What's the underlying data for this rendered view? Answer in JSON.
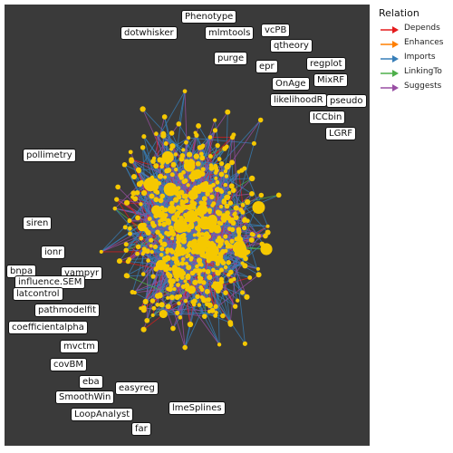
{
  "network": {
    "labels": [
      {
        "text": "Phenotype"
      },
      {
        "text": "dotwhisker"
      },
      {
        "text": "mlmtools"
      },
      {
        "text": "vcPB"
      },
      {
        "text": "qtheory"
      },
      {
        "text": "purge"
      },
      {
        "text": "epr"
      },
      {
        "text": "regplot"
      },
      {
        "text": "OnAge"
      },
      {
        "text": "MixRF"
      },
      {
        "text": "likelihoodR"
      },
      {
        "text": "pseudo"
      },
      {
        "text": "ICCbin"
      },
      {
        "text": "LGRF"
      },
      {
        "text": "pollimetry"
      },
      {
        "text": "siren"
      },
      {
        "text": "ionr"
      },
      {
        "text": "bnpa"
      },
      {
        "text": "vampyr"
      },
      {
        "text": "influence.SEM"
      },
      {
        "text": "latcontrol"
      },
      {
        "text": "pathmodelfit"
      },
      {
        "text": "coefficientalpha"
      },
      {
        "text": "mvctm"
      },
      {
        "text": "covBM"
      },
      {
        "text": "eba"
      },
      {
        "text": "easyreg"
      },
      {
        "text": "SmoothWin"
      },
      {
        "text": "lmeSplines"
      },
      {
        "text": "LoopAnalyst"
      },
      {
        "text": "far"
      }
    ],
    "node_color": "#f5c800",
    "background": "#3a3a3a"
  },
  "legend": {
    "title": "Relation",
    "items": [
      {
        "label": "Depends",
        "color": "#e41a1c"
      },
      {
        "label": "Enhances",
        "color": "#ff7f00"
      },
      {
        "label": "Imports",
        "color": "#377eb8"
      },
      {
        "label": "LinkingTo",
        "color": "#4daf4a"
      },
      {
        "label": "Suggests",
        "color": "#984ea3"
      }
    ]
  }
}
